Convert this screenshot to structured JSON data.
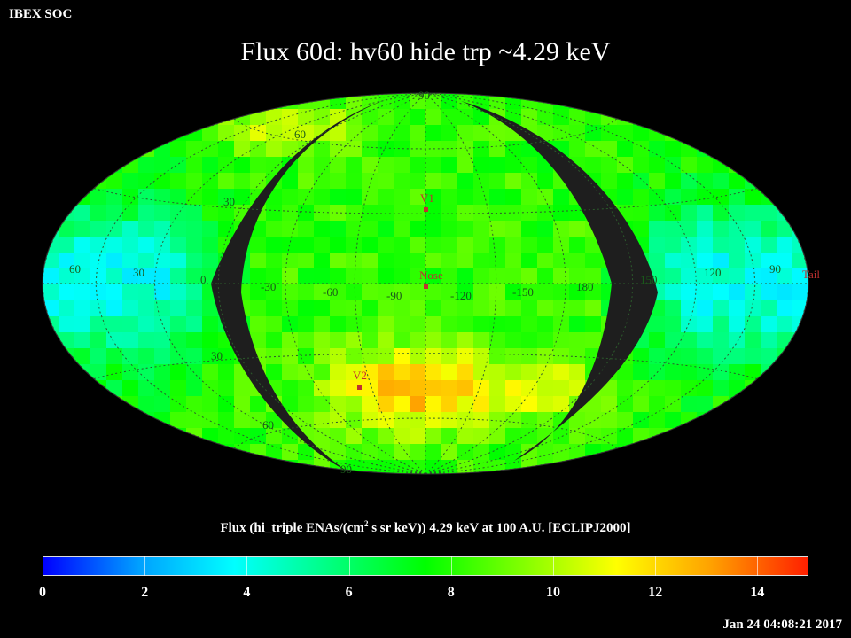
{
  "header": {
    "corner_label": "IBEX SOC",
    "title": "Flux   60d: hv60 hide trp ~4.29 keV"
  },
  "map": {
    "projection": "Aitoff/Hammer (ecliptic)",
    "lat_labels": [
      "60",
      "30",
      "30",
      "60",
      "90",
      "90"
    ],
    "lon_labels": [
      "60",
      "30",
      "0",
      "-30",
      "-60",
      "-90",
      "-120",
      "-150",
      "180",
      "150",
      "120",
      "90"
    ],
    "markers": [
      {
        "name": "V1",
        "color": "#c03030"
      },
      {
        "name": "Nose",
        "color": "#c03030"
      },
      {
        "name": "V2",
        "color": "#c03030"
      },
      {
        "name": "Tail",
        "color": "#c03030"
      }
    ]
  },
  "colorbar": {
    "caption_pre": "Flux (hi_triple ENAs/(cm",
    "caption_sup": "2",
    "caption_post": " s sr keV))  4.29 keV at 100 A.U. [ECLIPJ2000]",
    "min": 0,
    "max": 15,
    "ticks": [
      "0",
      "2",
      "4",
      "6",
      "8",
      "10",
      "12",
      "14"
    ],
    "tick_values": [
      0,
      2,
      4,
      6,
      8,
      10,
      12,
      14
    ],
    "colors": [
      "#0000ff",
      "#00a0ff",
      "#00ffff",
      "#00ff80",
      "#00ff00",
      "#80ff00",
      "#ffff00",
      "#ffa000",
      "#ff2000"
    ]
  },
  "footer": {
    "timestamp": "Jan 24 04:08:21 2017"
  }
}
